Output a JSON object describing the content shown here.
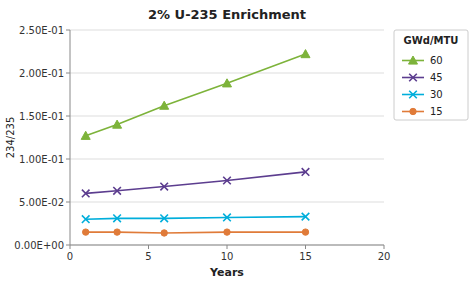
{
  "chart_data": {
    "type": "line",
    "title": "2% U-235 Enrichment",
    "x_label": "Years",
    "y_label": "234/235",
    "legend_title": "GWd/MTU",
    "x": [
      1,
      3,
      6,
      10,
      15
    ],
    "series": [
      {
        "name": "60",
        "color": "#7db33a",
        "marker": "triangle",
        "values": [
          0.127,
          0.14,
          0.162,
          0.188,
          0.222
        ]
      },
      {
        "name": "45",
        "color": "#5c3d8f",
        "marker": "x",
        "values": [
          0.06,
          0.063,
          0.068,
          0.075,
          0.085
        ]
      },
      {
        "name": "30",
        "color": "#00aedb",
        "marker": "x",
        "values": [
          0.03,
          0.031,
          0.031,
          0.032,
          0.033
        ]
      },
      {
        "name": "15",
        "color": "#e07b39",
        "marker": "circle",
        "values": [
          0.015,
          0.015,
          0.014,
          0.015,
          0.015
        ]
      }
    ],
    "xlim": [
      0,
      20
    ],
    "xticks": [
      0,
      5,
      10,
      15,
      20
    ],
    "ylim": [
      0,
      0.25
    ],
    "yticks": [
      {
        "value": 0.0,
        "label": "0.00E+00"
      },
      {
        "value": 0.05,
        "label": "5.00E-02"
      },
      {
        "value": 0.1,
        "label": "1.00E-01"
      },
      {
        "value": 0.15,
        "label": "1.50E-01"
      },
      {
        "value": 0.2,
        "label": "2.00E-01"
      },
      {
        "value": 0.25,
        "label": "2.50E-01"
      }
    ],
    "grid": true,
    "legend": "right"
  }
}
